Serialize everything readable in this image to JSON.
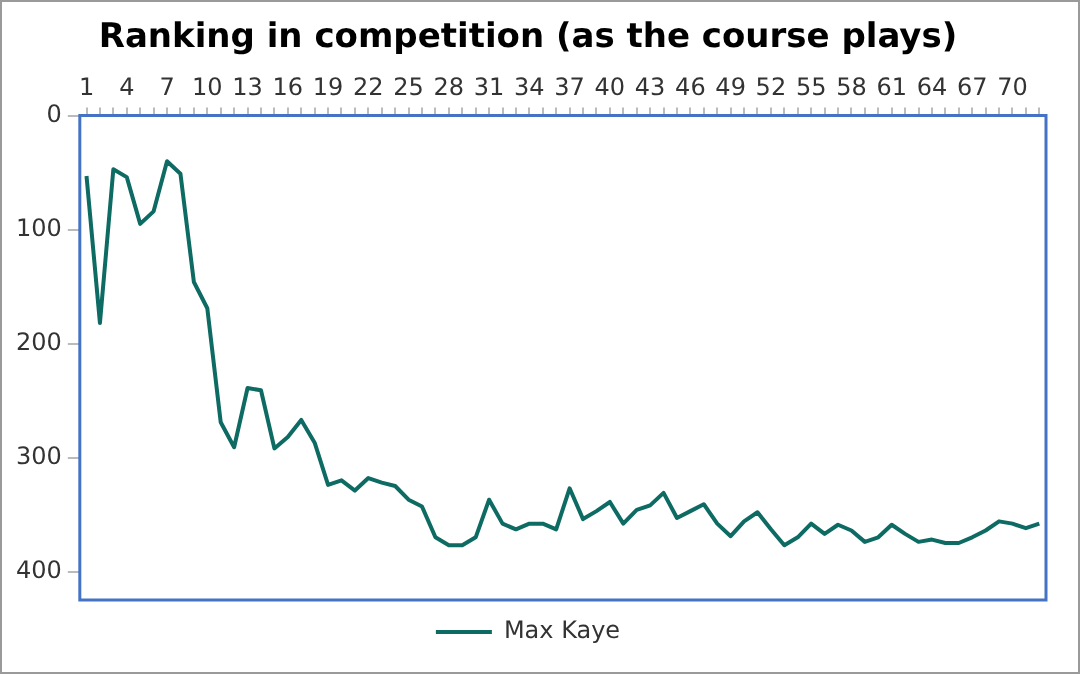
{
  "chart_data": {
    "type": "line",
    "title": "Ranking in competition (as the course plays)",
    "categories": [
      "1",
      null,
      null,
      "4",
      null,
      null,
      "7",
      null,
      null,
      "10",
      null,
      null,
      "13",
      null,
      null,
      "16",
      null,
      null,
      "19",
      null,
      null,
      "22",
      null,
      null,
      "25",
      null,
      null,
      "28",
      null,
      null,
      "31",
      null,
      null,
      "34",
      null,
      null,
      "37",
      null,
      null,
      "40",
      null,
      null,
      "43",
      null,
      null,
      "46",
      null,
      null,
      "49",
      null,
      null,
      "52",
      null,
      null,
      "55",
      null,
      null,
      "58",
      null,
      null,
      "61",
      null,
      null,
      "64",
      null,
      null,
      "67",
      null,
      null,
      "70",
      null,
      null
    ],
    "series": [
      {
        "name": "Max Kaye",
        "color": "#0e6b63",
        "values": [
          53,
          182,
          47,
          54,
          95,
          84,
          40,
          51,
          146,
          169,
          269,
          291,
          239,
          241,
          292,
          282,
          267,
          287,
          324,
          320,
          329,
          318,
          322,
          325,
          337,
          343,
          370,
          377,
          377,
          370,
          337,
          358,
          363,
          358,
          358,
          363,
          327,
          354,
          347,
          339,
          358,
          346,
          342,
          331,
          353,
          347,
          341,
          358,
          369,
          356,
          348,
          363,
          377,
          370,
          358,
          367,
          359,
          364,
          374,
          370,
          359,
          367,
          374,
          372,
          375,
          375,
          370,
          364,
          356,
          358,
          362,
          358
        ]
      }
    ],
    "ylim": [
      425,
      0
    ],
    "yticks": [
      0,
      100,
      200,
      300,
      400
    ],
    "grid": false,
    "legend": "bottom",
    "marker": "none",
    "line_style": "solid"
  }
}
